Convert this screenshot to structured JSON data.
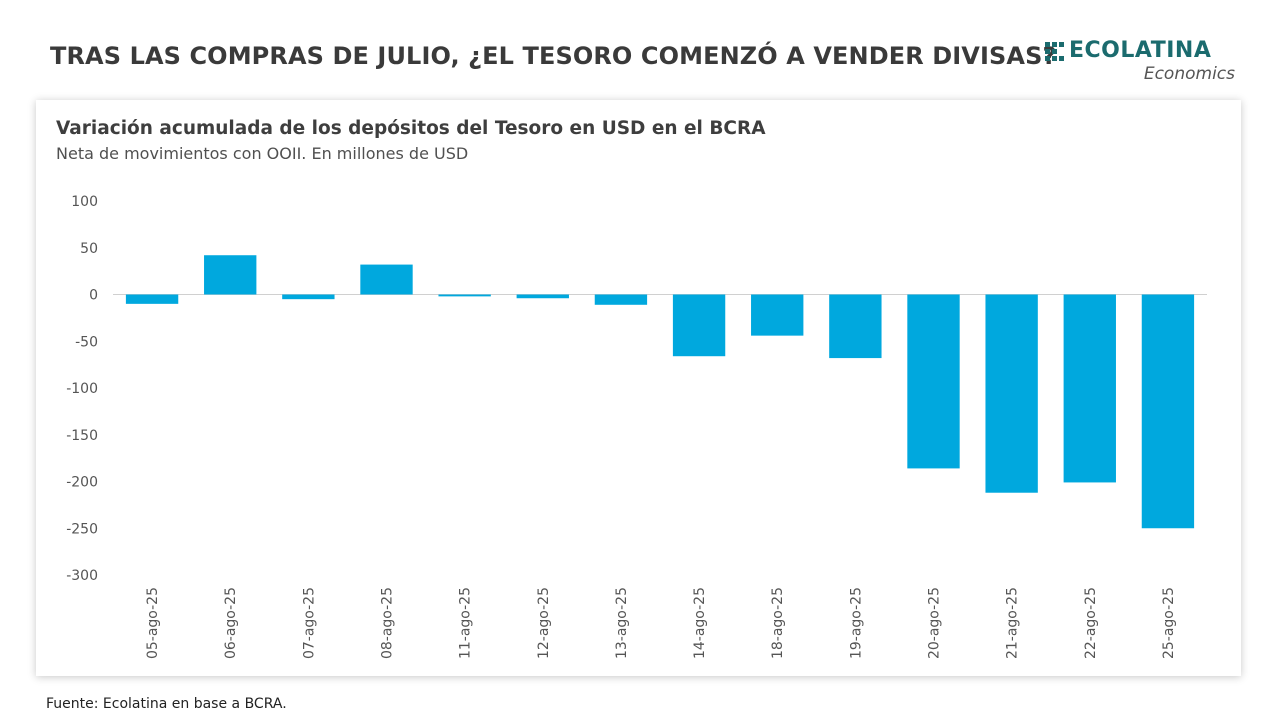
{
  "header": {
    "title": "TRAS LAS COMPRAS DE JULIO, ¿EL TESORO COMENZÓ A VENDER DIVISAS?",
    "logo_name": "ECOLATINA",
    "logo_sub": "Economics",
    "logo_color": "#1b6b6e"
  },
  "footer": {
    "source": "Fuente: Ecolatina en base a BCRA."
  },
  "chart_data": {
    "type": "bar",
    "title": "Variación acumulada de los depósitos del Tesoro en USD en el BCRA",
    "subtitle": "Neta de movimientos con OOII. En millones de USD",
    "categories": [
      "05-ago-25",
      "06-ago-25",
      "07-ago-25",
      "08-ago-25",
      "11-ago-25",
      "12-ago-25",
      "13-ago-25",
      "14-ago-25",
      "18-ago-25",
      "19-ago-25",
      "20-ago-25",
      "21-ago-25",
      "22-ago-25",
      "25-ago-25"
    ],
    "values": [
      -10,
      42,
      -5,
      32,
      -2,
      -4,
      -11,
      -66,
      -44,
      -68,
      -186,
      -212,
      -201,
      -250
    ],
    "ylim": [
      -300,
      100
    ],
    "yticks": [
      100,
      50,
      0,
      -50,
      -100,
      -150,
      -200,
      -250,
      -300
    ],
    "bar_color": "#00a8de",
    "grid": false
  }
}
